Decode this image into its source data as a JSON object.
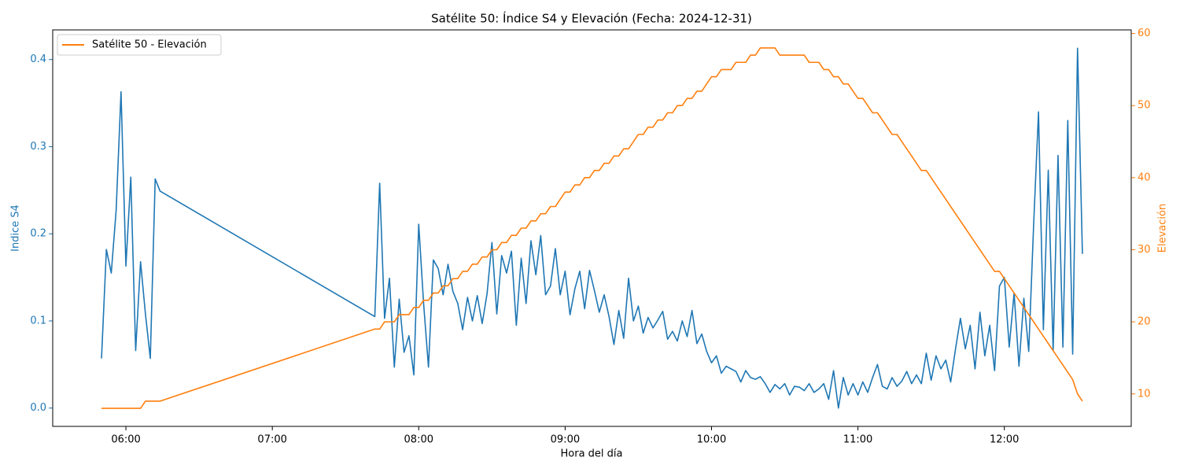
{
  "chart_data": {
    "type": "line",
    "title": "Satélite 50: Índice S4 y Elevación (Fecha: 2024-12-31)",
    "x_label": "Hora del día",
    "y_label": "Indice S4",
    "y2_label": "Elevación",
    "legend": "upper left",
    "x": [
      "05:50",
      "05:52",
      "05:54",
      "05:56",
      "05:58",
      "06:00",
      "06:02",
      "06:04",
      "06:06",
      "06:08",
      "06:10",
      "06:12",
      "06:14",
      "07:42",
      "07:44",
      "07:46",
      "07:48",
      "07:50",
      "07:52",
      "07:54",
      "07:56",
      "07:58",
      "08:00",
      "08:02",
      "08:04",
      "08:06",
      "08:08",
      "08:10",
      "08:12",
      "08:14",
      "08:16",
      "08:18",
      "08:20",
      "08:22",
      "08:24",
      "08:26",
      "08:28",
      "08:30",
      "08:32",
      "08:34",
      "08:36",
      "08:38",
      "08:40",
      "08:42",
      "08:44",
      "08:46",
      "08:48",
      "08:50",
      "08:52",
      "08:54",
      "08:56",
      "08:58",
      "09:00",
      "09:02",
      "09:04",
      "09:06",
      "09:08",
      "09:10",
      "09:12",
      "09:14",
      "09:16",
      "09:18",
      "09:20",
      "09:22",
      "09:24",
      "09:26",
      "09:28",
      "09:30",
      "09:32",
      "09:34",
      "09:36",
      "09:38",
      "09:40",
      "09:42",
      "09:44",
      "09:46",
      "09:48",
      "09:50",
      "09:52",
      "09:54",
      "09:56",
      "09:58",
      "10:00",
      "10:02",
      "10:04",
      "10:06",
      "10:08",
      "10:10",
      "10:12",
      "10:14",
      "10:16",
      "10:18",
      "10:20",
      "10:22",
      "10:24",
      "10:26",
      "10:28",
      "10:30",
      "10:32",
      "10:34",
      "10:36",
      "10:38",
      "10:40",
      "10:42",
      "10:44",
      "10:46",
      "10:48",
      "10:50",
      "10:52",
      "10:54",
      "10:56",
      "10:58",
      "11:00",
      "11:02",
      "11:04",
      "11:06",
      "11:08",
      "11:10",
      "11:12",
      "11:14",
      "11:16",
      "11:18",
      "11:20",
      "11:22",
      "11:24",
      "11:26",
      "11:28",
      "11:30",
      "11:32",
      "11:34",
      "11:36",
      "11:38",
      "11:40",
      "11:42",
      "11:44",
      "11:46",
      "11:48",
      "11:50",
      "11:52",
      "11:54",
      "11:56",
      "11:58",
      "12:00",
      "12:02",
      "12:04",
      "12:06",
      "12:08",
      "12:10",
      "12:12",
      "12:14",
      "12:16",
      "12:18",
      "12:20",
      "12:22",
      "12:24",
      "12:26",
      "12:28",
      "12:30",
      "12:32"
    ],
    "series": [
      {
        "color": "#1f77b4",
        "axis": "y",
        "values": [
          0.057,
          0.182,
          0.155,
          0.227,
          0.363,
          0.163,
          0.265,
          0.066,
          0.168,
          0.108,
          0.057,
          0.263,
          0.249,
          0.105,
          0.258,
          0.103,
          0.149,
          0.047,
          0.125,
          0.064,
          0.083,
          0.038,
          0.211,
          0.12,
          0.047,
          0.17,
          0.16,
          0.13,
          0.165,
          0.134,
          0.12,
          0.09,
          0.127,
          0.1,
          0.129,
          0.097,
          0.131,
          0.19,
          0.108,
          0.175,
          0.155,
          0.18,
          0.095,
          0.172,
          0.12,
          0.192,
          0.153,
          0.198,
          0.13,
          0.14,
          0.183,
          0.13,
          0.157,
          0.107,
          0.137,
          0.157,
          0.114,
          0.158,
          0.135,
          0.11,
          0.13,
          0.105,
          0.073,
          0.112,
          0.08,
          0.149,
          0.1,
          0.117,
          0.086,
          0.104,
          0.092,
          0.101,
          0.111,
          0.079,
          0.088,
          0.077,
          0.1,
          0.082,
          0.112,
          0.074,
          0.085,
          0.065,
          0.052,
          0.06,
          0.04,
          0.048,
          0.045,
          0.042,
          0.03,
          0.043,
          0.035,
          0.033,
          0.036,
          0.028,
          0.018,
          0.027,
          0.022,
          0.028,
          0.015,
          0.025,
          0.024,
          0.02,
          0.028,
          0.018,
          0.022,
          0.028,
          0.01,
          0.043,
          0,
          0.035,
          0.015,
          0.028,
          0.015,
          0.03,
          0.018,
          0.035,
          0.05,
          0.025,
          0.022,
          0.035,
          0.025,
          0.031,
          0.042,
          0.028,
          0.038,
          0.028,
          0.063,
          0.032,
          0.06,
          0.045,
          0.055,
          0.03,
          0.068,
          0.103,
          0.068,
          0.095,
          0.045,
          0.11,
          0.06,
          0.095,
          0.043,
          0.14,
          0.15,
          0.07,
          0.132,
          0.048,
          0.126,
          0.065,
          0.21,
          0.34,
          0.09,
          0.273,
          0.066,
          0.29,
          0.07,
          0.33,
          0.062,
          0.413,
          0.177
        ]
      },
      {
        "name": "Satélite 50 - Elevación",
        "color": "#ff7f0e",
        "axis": "y2",
        "values": [
          8,
          8,
          8,
          8,
          8,
          8,
          8,
          8,
          8,
          9,
          9,
          9,
          9,
          19,
          19,
          20,
          20,
          20,
          21,
          21,
          21,
          22,
          22,
          23,
          23,
          24,
          24,
          25,
          25,
          26,
          26,
          27,
          27,
          28,
          28,
          29,
          29,
          30,
          30,
          31,
          31,
          32,
          32,
          33,
          33,
          34,
          34,
          35,
          35,
          36,
          36,
          37,
          38,
          38,
          39,
          39,
          40,
          40,
          41,
          41,
          42,
          42,
          43,
          43,
          44,
          44,
          45,
          46,
          46,
          47,
          47,
          48,
          48,
          49,
          49,
          50,
          50,
          51,
          51,
          52,
          52,
          53,
          54,
          54,
          55,
          55,
          55,
          56,
          56,
          56,
          57,
          57,
          58,
          58,
          58,
          58,
          57,
          57,
          57,
          57,
          57,
          57,
          56,
          56,
          56,
          55,
          55,
          54,
          54,
          53,
          53,
          52,
          51,
          51,
          50,
          49,
          49,
          48,
          47,
          46,
          46,
          45,
          44,
          43,
          42,
          41,
          41,
          40,
          39,
          38,
          37,
          36,
          35,
          34,
          33,
          32,
          31,
          30,
          29,
          28,
          27,
          27,
          26,
          25,
          24,
          23,
          22,
          21,
          20,
          19,
          18,
          17,
          16,
          15,
          14,
          13,
          12,
          10,
          9
        ]
      }
    ],
    "xlim": [
      "05:30",
      "12:52"
    ],
    "xticks": [
      "06:00",
      "07:00",
      "08:00",
      "09:00",
      "10:00",
      "11:00",
      "12:00"
    ],
    "ylim": [
      -0.021,
      0.434
    ],
    "yticks": [
      {
        "value": 0,
        "label": "0.0"
      },
      0.1,
      0.2,
      0.3,
      0.4
    ],
    "y2lim": [
      5.5,
      60.5
    ],
    "y2ticks": [
      10,
      20,
      30,
      40,
      50,
      60
    ]
  }
}
